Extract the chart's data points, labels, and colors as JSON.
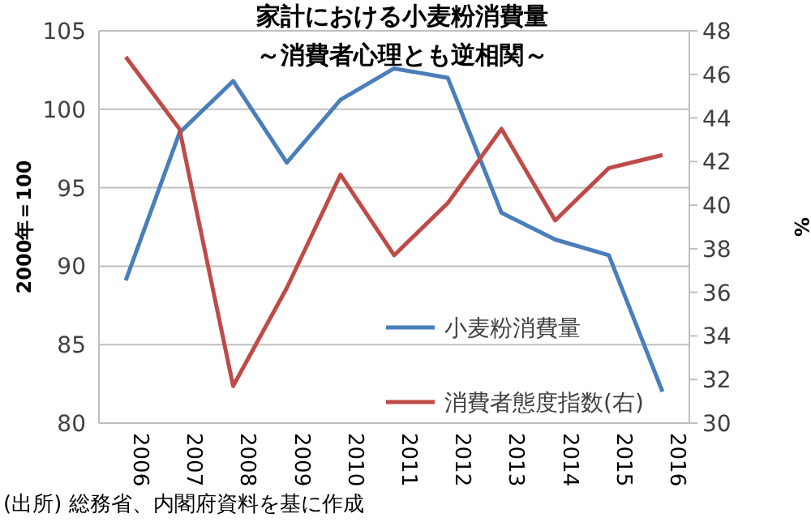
{
  "chart_data": {
    "type": "line",
    "title": "家計における小麦粉消費量",
    "subtitle": "～消費者心理とも逆相関～",
    "ylabel": "2000年＝100",
    "y2label": "%",
    "categories": [
      "2006",
      "2007",
      "2008",
      "2009",
      "2010",
      "2011",
      "2012",
      "2013",
      "2014",
      "2015",
      "2016"
    ],
    "series": [
      {
        "name": "小麦粉消費量",
        "color": "#4a7ebb",
        "values": [
          89.1,
          98.5,
          101.8,
          96.6,
          100.6,
          102.6,
          102.0,
          93.4,
          91.7,
          90.7,
          82.0
        ]
      },
      {
        "name": "消費者態度指数(右)",
        "color": "#be4b48",
        "axis": "y2",
        "values": [
          46.8,
          43.5,
          31.7,
          36.2,
          41.4,
          37.7,
          40.1,
          43.5,
          39.3,
          41.7,
          42.3
        ]
      }
    ],
    "ylim": [
      80,
      105
    ],
    "yticks": [
      80,
      85,
      90,
      95,
      100,
      105
    ],
    "y2lim": [
      30,
      48
    ],
    "y2ticks": [
      30,
      32,
      34,
      36,
      38,
      40,
      42,
      44,
      46,
      48
    ],
    "grid": "y",
    "legend": "bottom right",
    "annotations": [
      "(出所) 総務省、内閣府資料を基に作成"
    ]
  }
}
